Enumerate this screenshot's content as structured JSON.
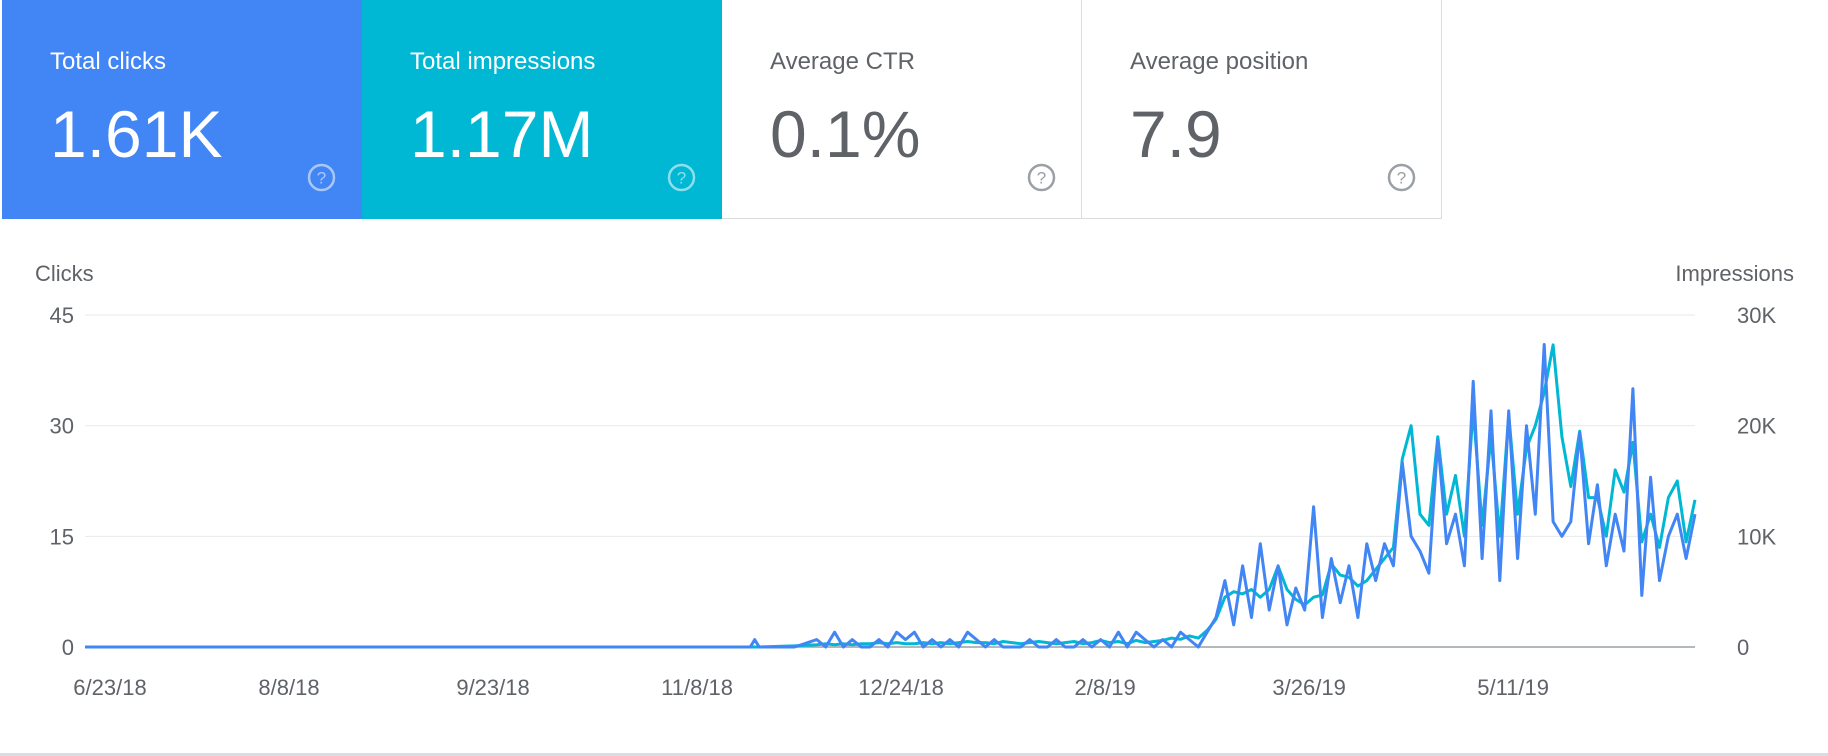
{
  "tiles": [
    {
      "id": "clicks",
      "label": "Total clicks",
      "value": "1.61K"
    },
    {
      "id": "impressions",
      "label": "Total impressions",
      "value": "1.17M"
    },
    {
      "id": "ctr",
      "label": "Average CTR",
      "value": "0.1%"
    },
    {
      "id": "position",
      "label": "Average position",
      "value": "7.9"
    }
  ],
  "icons": {
    "help": "help-circle-icon"
  },
  "colors": {
    "clicks": "#4285f4",
    "impressions": "#00b8d4"
  },
  "chart_data": {
    "type": "line",
    "ylabel_left": "Clicks",
    "ylabel_right": "Impressions",
    "y_left_ticks": [
      "0",
      "15",
      "30",
      "45"
    ],
    "y_right_ticks": [
      "0",
      "10K",
      "20K",
      "30K"
    ],
    "ylim_left": [
      0,
      45
    ],
    "ylim_right": [
      0,
      30000
    ],
    "x_tick_labels": [
      "6/23/18",
      "8/8/18",
      "9/23/18",
      "11/8/18",
      "12/24/18",
      "2/8/19",
      "3/26/19",
      "5/11/19"
    ],
    "grid": true,
    "series": [
      {
        "name": "Clicks",
        "axis": "left",
        "x": [
          "2018-06-23",
          "2018-07-10",
          "2018-08-01",
          "2018-09-01",
          "2018-10-01",
          "2018-11-01",
          "2018-11-20",
          "2018-11-21",
          "2018-11-22",
          "2018-11-30",
          "2018-12-05",
          "2018-12-07",
          "2018-12-09",
          "2018-12-11",
          "2018-12-13",
          "2018-12-15",
          "2018-12-17",
          "2018-12-19",
          "2018-12-21",
          "2018-12-23",
          "2018-12-25",
          "2018-12-27",
          "2018-12-29",
          "2018-12-31",
          "2019-01-02",
          "2019-01-04",
          "2019-01-06",
          "2019-01-08",
          "2019-01-10",
          "2019-01-12",
          "2019-01-14",
          "2019-01-16",
          "2019-01-18",
          "2019-01-20",
          "2019-01-22",
          "2019-01-24",
          "2019-01-26",
          "2019-01-28",
          "2019-01-30",
          "2019-02-01",
          "2019-02-03",
          "2019-02-05",
          "2019-02-07",
          "2019-02-09",
          "2019-02-11",
          "2019-02-13",
          "2019-02-15",
          "2019-02-17",
          "2019-02-19",
          "2019-02-21",
          "2019-02-23",
          "2019-02-25",
          "2019-02-27",
          "2019-03-01",
          "2019-03-03",
          "2019-03-05",
          "2019-03-07",
          "2019-03-09",
          "2019-03-11",
          "2019-03-13",
          "2019-03-15",
          "2019-03-17",
          "2019-03-19",
          "2019-03-21",
          "2019-03-23",
          "2019-03-25",
          "2019-03-27",
          "2019-03-29",
          "2019-03-31",
          "2019-04-02",
          "2019-04-04",
          "2019-04-06",
          "2019-04-08",
          "2019-04-10",
          "2019-04-12",
          "2019-04-14",
          "2019-04-16",
          "2019-04-18",
          "2019-04-20",
          "2019-04-22",
          "2019-04-24",
          "2019-04-26",
          "2019-04-28",
          "2019-04-30",
          "2019-05-02",
          "2019-05-04",
          "2019-05-06",
          "2019-05-08",
          "2019-05-10",
          "2019-05-12",
          "2019-05-14",
          "2019-05-16",
          "2019-05-18",
          "2019-05-20",
          "2019-05-22",
          "2019-05-24",
          "2019-05-26",
          "2019-05-28",
          "2019-05-30",
          "2019-06-01",
          "2019-06-03",
          "2019-06-05",
          "2019-06-07",
          "2019-06-09",
          "2019-06-11",
          "2019-06-13",
          "2019-06-15",
          "2019-06-17",
          "2019-06-19",
          "2019-06-21"
        ],
        "values": [
          0,
          0,
          0,
          0,
          0,
          0,
          0,
          1,
          0,
          0,
          1,
          0,
          2,
          0,
          1,
          0,
          0,
          1,
          0,
          2,
          1,
          2,
          0,
          1,
          0,
          1,
          0,
          2,
          1,
          0,
          1,
          0,
          0,
          0,
          1,
          0,
          0,
          1,
          0,
          0,
          1,
          0,
          1,
          0,
          2,
          0,
          2,
          1,
          0,
          1,
          0,
          2,
          1,
          0,
          2,
          4,
          9,
          3,
          11,
          4,
          14,
          5,
          11,
          3,
          8,
          5,
          19,
          4,
          12,
          6,
          11,
          4,
          14,
          9,
          14,
          11,
          25,
          15,
          13,
          10,
          28,
          14,
          18,
          11,
          36,
          12,
          32,
          9,
          32,
          12,
          30,
          18,
          41,
          17,
          15,
          17,
          29,
          14,
          22,
          11,
          18,
          13,
          35,
          7,
          23,
          9,
          15,
          18,
          12,
          18
        ]
      },
      {
        "name": "Impressions",
        "axis": "right",
        "x": [
          "2018-06-23",
          "2018-07-10",
          "2018-08-01",
          "2018-09-01",
          "2018-10-01",
          "2018-11-01",
          "2018-11-20",
          "2018-11-21",
          "2018-11-22",
          "2018-11-30",
          "2018-12-05",
          "2018-12-07",
          "2018-12-09",
          "2018-12-11",
          "2018-12-13",
          "2018-12-15",
          "2018-12-17",
          "2018-12-19",
          "2018-12-21",
          "2018-12-23",
          "2018-12-25",
          "2018-12-27",
          "2018-12-29",
          "2018-12-31",
          "2019-01-02",
          "2019-01-04",
          "2019-01-06",
          "2019-01-08",
          "2019-01-10",
          "2019-01-12",
          "2019-01-14",
          "2019-01-16",
          "2019-01-18",
          "2019-01-20",
          "2019-01-22",
          "2019-01-24",
          "2019-01-26",
          "2019-01-28",
          "2019-01-30",
          "2019-02-01",
          "2019-02-03",
          "2019-02-05",
          "2019-02-07",
          "2019-02-09",
          "2019-02-11",
          "2019-02-13",
          "2019-02-15",
          "2019-02-17",
          "2019-02-19",
          "2019-02-21",
          "2019-02-23",
          "2019-02-25",
          "2019-02-27",
          "2019-03-01",
          "2019-03-03",
          "2019-03-05",
          "2019-03-07",
          "2019-03-09",
          "2019-03-11",
          "2019-03-13",
          "2019-03-15",
          "2019-03-17",
          "2019-03-19",
          "2019-03-21",
          "2019-03-23",
          "2019-03-25",
          "2019-03-27",
          "2019-03-29",
          "2019-03-31",
          "2019-04-02",
          "2019-04-04",
          "2019-04-06",
          "2019-04-08",
          "2019-04-10",
          "2019-04-12",
          "2019-04-14",
          "2019-04-16",
          "2019-04-18",
          "2019-04-20",
          "2019-04-22",
          "2019-04-24",
          "2019-04-26",
          "2019-04-28",
          "2019-04-30",
          "2019-05-02",
          "2019-05-04",
          "2019-05-06",
          "2019-05-08",
          "2019-05-10",
          "2019-05-12",
          "2019-05-14",
          "2019-05-16",
          "2019-05-18",
          "2019-05-20",
          "2019-05-22",
          "2019-05-24",
          "2019-05-26",
          "2019-05-28",
          "2019-05-30",
          "2019-06-01",
          "2019-06-03",
          "2019-06-05",
          "2019-06-07",
          "2019-06-09",
          "2019-06-11",
          "2019-06-13",
          "2019-06-15",
          "2019-06-17",
          "2019-06-19",
          "2019-06-21"
        ],
        "values": [
          0,
          0,
          0,
          0,
          0,
          0,
          0,
          0,
          0,
          100,
          200,
          300,
          200,
          300,
          200,
          300,
          300,
          400,
          300,
          400,
          300,
          300,
          400,
          300,
          400,
          300,
          400,
          500,
          400,
          400,
          300,
          500,
          400,
          300,
          400,
          500,
          400,
          300,
          400,
          500,
          300,
          400,
          600,
          400,
          500,
          300,
          600,
          400,
          500,
          600,
          800,
          700,
          1000,
          800,
          1500,
          2500,
          4500,
          5000,
          4800,
          5200,
          4500,
          5200,
          7300,
          5200,
          4300,
          3800,
          4500,
          4700,
          7500,
          6500,
          6300,
          5500,
          6000,
          7000,
          8000,
          9000,
          17000,
          20000,
          12000,
          11000,
          19000,
          12000,
          15500,
          10000,
          21500,
          11000,
          19000,
          10000,
          21000,
          12000,
          18000,
          20000,
          23000,
          27300,
          19000,
          14500,
          19500,
          13500,
          13500,
          10000,
          16000,
          14000,
          18500,
          9500,
          12000,
          9000,
          13500,
          15000,
          9500,
          13300
        ]
      }
    ]
  }
}
